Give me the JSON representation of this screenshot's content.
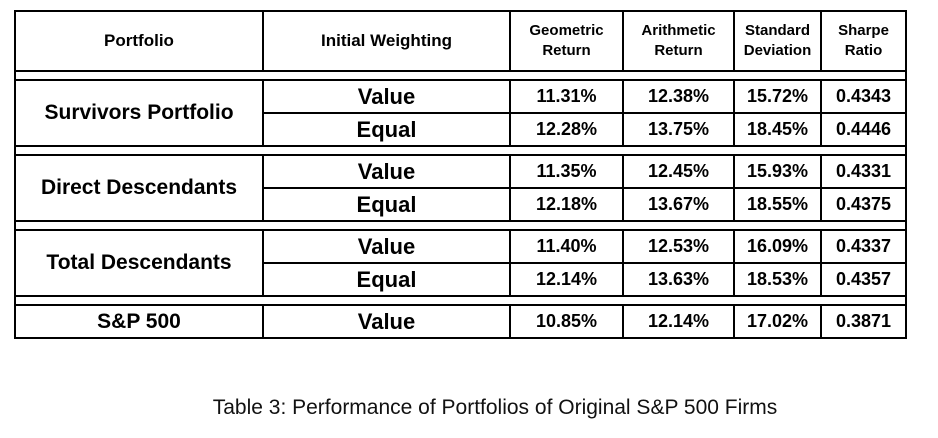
{
  "header": {
    "portfolio": "Portfolio",
    "weighting": "Initial Weighting",
    "geometric_line1": "Geometric",
    "geometric_line2": "Return",
    "arithmetic_line1": "Arithmetic",
    "arithmetic_line2": "Return",
    "stddev_line1": "Standard",
    "stddev_line2": "Deviation",
    "sharpe_line1": "Sharpe",
    "sharpe_line2": "Ratio"
  },
  "groups": [
    {
      "name": "Survivors Portfolio",
      "rows": [
        {
          "weighting": "Value",
          "geometric": "11.31%",
          "arithmetic": "12.38%",
          "stddev": "15.72%",
          "sharpe": "0.4343"
        },
        {
          "weighting": "Equal",
          "geometric": "12.28%",
          "arithmetic": "13.75%",
          "stddev": "18.45%",
          "sharpe": "0.4446"
        }
      ]
    },
    {
      "name": "Direct Descendants",
      "rows": [
        {
          "weighting": "Value",
          "geometric": "11.35%",
          "arithmetic": "12.45%",
          "stddev": "15.93%",
          "sharpe": "0.4331"
        },
        {
          "weighting": "Equal",
          "geometric": "12.18%",
          "arithmetic": "13.67%",
          "stddev": "18.55%",
          "sharpe": "0.4375"
        }
      ]
    },
    {
      "name": "Total Descendants",
      "rows": [
        {
          "weighting": "Value",
          "geometric": "11.40%",
          "arithmetic": "12.53%",
          "stddev": "16.09%",
          "sharpe": "0.4337"
        },
        {
          "weighting": "Equal",
          "geometric": "12.14%",
          "arithmetic": "13.63%",
          "stddev": "18.53%",
          "sharpe": "0.4357"
        }
      ]
    },
    {
      "name": "S&P 500",
      "rows": [
        {
          "weighting": "Value",
          "geometric": "10.85%",
          "arithmetic": "12.14%",
          "stddev": "17.02%",
          "sharpe": "0.3871"
        }
      ]
    }
  ],
  "caption": "Table 3:  Performance of Portfolios of Original S&P 500 Firms"
}
